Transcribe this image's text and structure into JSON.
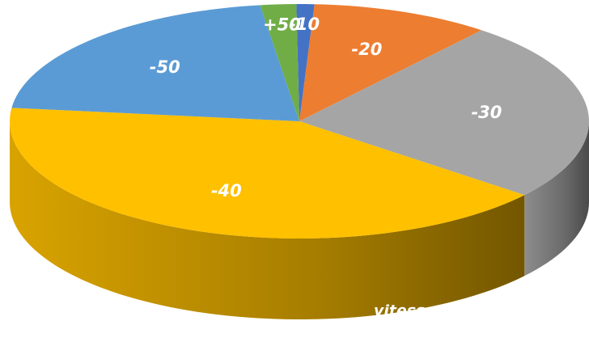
{
  "chart_data": {
    "type": "pie",
    "categories": [
      "-10",
      "-20",
      "-30",
      "-40",
      "-50",
      "+50"
    ],
    "values": [
      1,
      10,
      25,
      41,
      21,
      2
    ],
    "colors": [
      "#4472c4",
      "#ed7d31",
      "#a5a5a5",
      "#ffc000",
      "#5b9bd5",
      "#70ad47"
    ],
    "annotation": "vitesse en km/h"
  }
}
